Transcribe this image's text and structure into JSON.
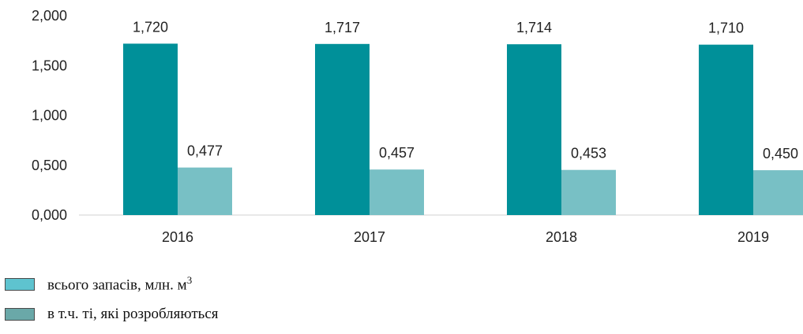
{
  "chart_data": {
    "type": "bar",
    "categories": [
      "2016",
      "2017",
      "2018",
      "2019"
    ],
    "series": [
      {
        "name": "всього запасів, млн. м3",
        "values": [
          1.72,
          1.717,
          1.714,
          1.71
        ],
        "labels": [
          "1,720",
          "1,717",
          "1,714",
          "1,710"
        ],
        "color": "#009099"
      },
      {
        "name": "в т.ч. ті, які розробляються",
        "values": [
          0.477,
          0.457,
          0.453,
          0.45
        ],
        "labels": [
          "0,477",
          "0,457",
          "0,453",
          "0,450"
        ],
        "color": "#78C0C5"
      }
    ],
    "yticks": [
      {
        "value": 0,
        "label": "0,000"
      },
      {
        "value": 0.5,
        "label": "0,500"
      },
      {
        "value": 1.0,
        "label": "1,000"
      },
      {
        "value": 1.5,
        "label": "1,500"
      },
      {
        "value": 2.0,
        "label": "2,000"
      }
    ],
    "ylim": [
      0,
      2.0
    ],
    "grid": false,
    "legend": {
      "position": "bottom-left",
      "items": [
        {
          "label": "всього запасів, млн. м",
          "superscript": "3",
          "color": "#5EC3CF"
        },
        {
          "label": "в т.ч. ті, які розробляються",
          "superscript": "",
          "color": "#6AA8A8"
        }
      ]
    }
  }
}
